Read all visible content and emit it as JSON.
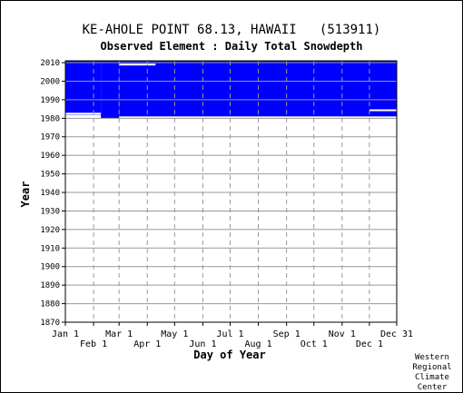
{
  "header": {
    "title": "KE-AHOLE POINT 68.13, HAWAII   (513911)",
    "subtitle": "Observed Element : Daily Total Snowdepth"
  },
  "credit": [
    "Western",
    "Regional",
    "Climate",
    "Center"
  ],
  "chart_data": {
    "type": "heatmap",
    "title": "KE-AHOLE POINT 68.13, HAWAII   (513911)",
    "subtitle": "Observed Element : Daily Total Snowdepth",
    "xlabel": "Day of Year",
    "ylabel": "Year",
    "x_ticks_upper": [
      {
        "label": "Jan 1",
        "day": 1
      },
      {
        "label": "Mar 1",
        "day": 60
      },
      {
        "label": "May 1",
        "day": 121
      },
      {
        "label": "Jul 1",
        "day": 182
      },
      {
        "label": "Sep 1",
        "day": 244
      },
      {
        "label": "Nov 1",
        "day": 305
      },
      {
        "label": "Dec 31",
        "day": 365
      }
    ],
    "x_ticks_lower": [
      {
        "label": "Feb 1",
        "day": 32
      },
      {
        "label": "Apr 1",
        "day": 91
      },
      {
        "label": "Jun 1",
        "day": 152
      },
      {
        "label": "Aug 1",
        "day": 213
      },
      {
        "label": "Oct 1",
        "day": 274
      },
      {
        "label": "Dec 1",
        "day": 335
      }
    ],
    "xlim": [
      1,
      365
    ],
    "ylim": [
      1870,
      2011
    ],
    "y_ticks": [
      1870,
      1880,
      1890,
      1900,
      1910,
      1920,
      1930,
      1940,
      1950,
      1960,
      1970,
      1980,
      1990,
      2000,
      2010
    ],
    "grid": true,
    "colors": {
      "data": "#0000ff",
      "grid": "#999999",
      "background": "#ffffff",
      "gap": "#ffffff"
    },
    "data_blocks": [
      {
        "day_start": 1,
        "day_end": 40,
        "year_start": 1981,
        "year_end": 2011
      },
      {
        "day_start": 40,
        "day_end": 60,
        "year_start": 1980,
        "year_end": 2011
      },
      {
        "day_start": 60,
        "day_end": 365,
        "year_start": 1981,
        "year_end": 2011
      }
    ],
    "missing": [
      {
        "day_start": 1,
        "day_end": 40,
        "year": 1982.5
      },
      {
        "day_start": 1,
        "day_end": 40,
        "year": 1981.3
      },
      {
        "day_start": 60,
        "day_end": 100,
        "year": 2009
      },
      {
        "day_start": 335,
        "day_end": 365,
        "year": 1984.3
      }
    ]
  }
}
